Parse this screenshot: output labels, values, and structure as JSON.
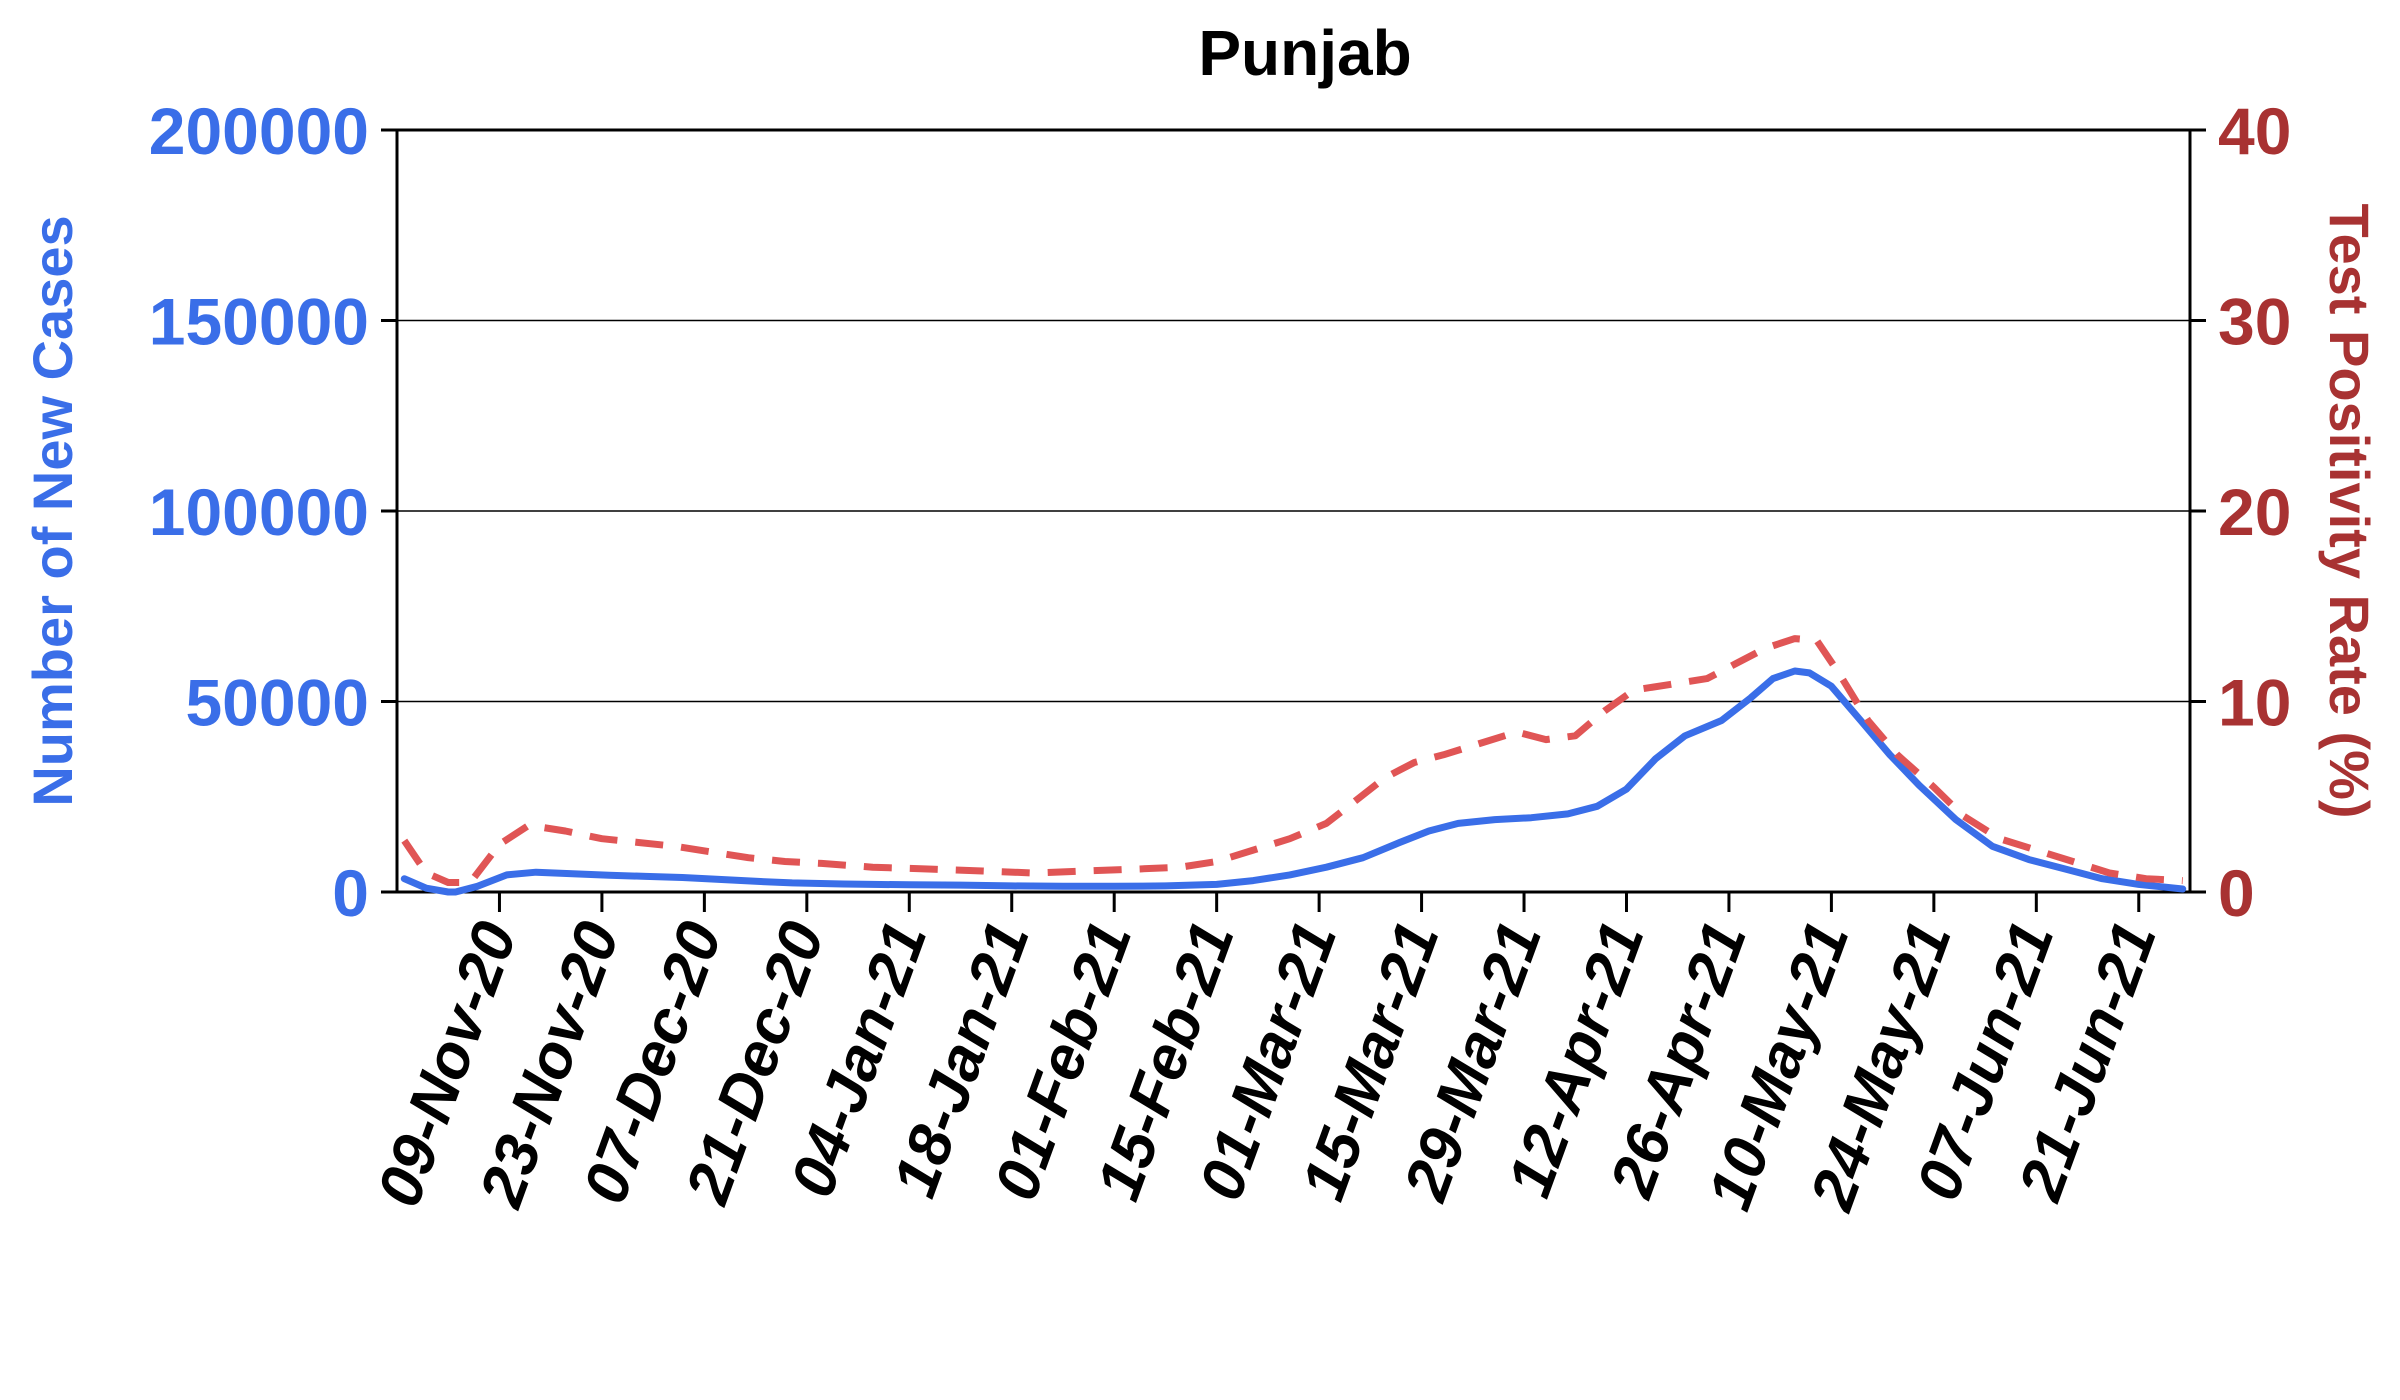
{
  "chart_data": {
    "type": "line",
    "title": "Punjab",
    "ylabel_left": "Number of New Cases",
    "ylabel_right": "Test Positivity Rate (%)",
    "ylim_left": [
      0,
      200000
    ],
    "ylim_right": [
      0,
      40
    ],
    "yticks_left": [
      "0",
      "50000",
      "100000",
      "150000",
      "200000"
    ],
    "yticks_right": [
      "0",
      "10",
      "20",
      "30",
      "40"
    ],
    "xlim": [
      "2020-10-26",
      "2021-06-28"
    ],
    "xticks": [
      {
        "date": "2020-11-09",
        "label": "09-Nov-20"
      },
      {
        "date": "2020-11-23",
        "label": "23-Nov-20"
      },
      {
        "date": "2020-12-07",
        "label": "07-Dec-20"
      },
      {
        "date": "2020-12-21",
        "label": "21-Dec-20"
      },
      {
        "date": "2021-01-04",
        "label": "04-Jan-21"
      },
      {
        "date": "2021-01-18",
        "label": "18-Jan-21"
      },
      {
        "date": "2021-02-01",
        "label": "01-Feb-21"
      },
      {
        "date": "2021-02-15",
        "label": "15-Feb-21"
      },
      {
        "date": "2021-03-01",
        "label": "01-Mar-21"
      },
      {
        "date": "2021-03-15",
        "label": "15-Mar-21"
      },
      {
        "date": "2021-03-29",
        "label": "29-Mar-21"
      },
      {
        "date": "2021-04-12",
        "label": "12-Apr-21"
      },
      {
        "date": "2021-04-26",
        "label": "26-Apr-21"
      },
      {
        "date": "2021-05-10",
        "label": "10-May-21"
      },
      {
        "date": "2021-05-24",
        "label": "24-May-21"
      },
      {
        "date": "2021-06-07",
        "label": "07-Jun-21"
      },
      {
        "date": "2021-06-21",
        "label": "21-Jun-21"
      }
    ],
    "grid": "horizontal",
    "colors": {
      "cases": "#3a6ee8",
      "tpr": "#e05555",
      "left_axis": "#3a6ee8",
      "right_axis": "#a83232"
    },
    "series": [
      {
        "axis": "left",
        "style": "solid",
        "points": [
          [
            "2020-10-27",
            3500
          ],
          [
            "2020-10-30",
            1000
          ],
          [
            "2020-11-02",
            0
          ],
          [
            "2020-11-03",
            0
          ],
          [
            "2020-11-06",
            1500
          ],
          [
            "2020-11-10",
            4500
          ],
          [
            "2020-11-14",
            5200
          ],
          [
            "2020-11-19",
            4800
          ],
          [
            "2020-11-24",
            4400
          ],
          [
            "2020-11-29",
            4100
          ],
          [
            "2020-12-04",
            3800
          ],
          [
            "2020-12-09",
            3300
          ],
          [
            "2020-12-14",
            2800
          ],
          [
            "2020-12-19",
            2400
          ],
          [
            "2020-12-26",
            2100
          ],
          [
            "2021-01-04",
            1900
          ],
          [
            "2021-01-11",
            1800
          ],
          [
            "2021-01-18",
            1600
          ],
          [
            "2021-01-25",
            1500
          ],
          [
            "2021-02-01",
            1500
          ],
          [
            "2021-02-08",
            1600
          ],
          [
            "2021-02-15",
            2000
          ],
          [
            "2021-02-20",
            3000
          ],
          [
            "2021-02-25",
            4500
          ],
          [
            "2021-03-02",
            6500
          ],
          [
            "2021-03-07",
            9000
          ],
          [
            "2021-03-12",
            13000
          ],
          [
            "2021-03-16",
            16000
          ],
          [
            "2021-03-20",
            18000
          ],
          [
            "2021-03-25",
            19000
          ],
          [
            "2021-03-30",
            19500
          ],
          [
            "2021-04-04",
            20500
          ],
          [
            "2021-04-08",
            22500
          ],
          [
            "2021-04-12",
            27000
          ],
          [
            "2021-04-16",
            35000
          ],
          [
            "2021-04-20",
            41000
          ],
          [
            "2021-04-25",
            45000
          ],
          [
            "2021-04-29",
            51000
          ],
          [
            "2021-05-02",
            56000
          ],
          [
            "2021-05-05",
            58000
          ],
          [
            "2021-05-07",
            57500
          ],
          [
            "2021-05-10",
            54000
          ],
          [
            "2021-05-14",
            45000
          ],
          [
            "2021-05-18",
            36000
          ],
          [
            "2021-05-22",
            28000
          ],
          [
            "2021-05-27",
            19000
          ],
          [
            "2021-06-01",
            12000
          ],
          [
            "2021-06-06",
            8500
          ],
          [
            "2021-06-11",
            6000
          ],
          [
            "2021-06-16",
            3500
          ],
          [
            "2021-06-21",
            2000
          ],
          [
            "2021-06-27",
            800
          ]
        ]
      },
      {
        "axis": "right",
        "style": "dashed",
        "points": [
          [
            "2020-10-27",
            2.7
          ],
          [
            "2020-10-30",
            1.0
          ],
          [
            "2020-11-02",
            0.5
          ],
          [
            "2020-11-05",
            0.5
          ],
          [
            "2020-11-09",
            2.5
          ],
          [
            "2020-11-13",
            3.5
          ],
          [
            "2020-11-18",
            3.2
          ],
          [
            "2020-11-23",
            2.8
          ],
          [
            "2020-11-28",
            2.6
          ],
          [
            "2020-12-03",
            2.4
          ],
          [
            "2020-12-08",
            2.1
          ],
          [
            "2020-12-13",
            1.8
          ],
          [
            "2020-12-18",
            1.6
          ],
          [
            "2020-12-23",
            1.5
          ],
          [
            "2020-12-30",
            1.3
          ],
          [
            "2021-01-07",
            1.2
          ],
          [
            "2021-01-14",
            1.1
          ],
          [
            "2021-01-21",
            1.0
          ],
          [
            "2021-01-28",
            1.1
          ],
          [
            "2021-02-04",
            1.2
          ],
          [
            "2021-02-10",
            1.3
          ],
          [
            "2021-02-15",
            1.6
          ],
          [
            "2021-02-20",
            2.2
          ],
          [
            "2021-02-25",
            2.8
          ],
          [
            "2021-03-02",
            3.6
          ],
          [
            "2021-03-06",
            4.8
          ],
          [
            "2021-03-10",
            6.0
          ],
          [
            "2021-03-14",
            6.8
          ],
          [
            "2021-03-18",
            7.2
          ],
          [
            "2021-03-23",
            7.8
          ],
          [
            "2021-03-28",
            8.4
          ],
          [
            "2021-04-01",
            8.0
          ],
          [
            "2021-04-05",
            8.2
          ],
          [
            "2021-04-09",
            9.5
          ],
          [
            "2021-04-13",
            10.6
          ],
          [
            "2021-04-18",
            10.9
          ],
          [
            "2021-04-23",
            11.2
          ],
          [
            "2021-04-27",
            12.0
          ],
          [
            "2021-05-01",
            12.8
          ],
          [
            "2021-05-05",
            13.3
          ],
          [
            "2021-05-08",
            13.2
          ],
          [
            "2021-05-11",
            11.5
          ],
          [
            "2021-05-15",
            9.0
          ],
          [
            "2021-05-19",
            7.2
          ],
          [
            "2021-05-24",
            5.5
          ],
          [
            "2021-05-28",
            4.0
          ],
          [
            "2021-06-02",
            2.8
          ],
          [
            "2021-06-07",
            2.2
          ],
          [
            "2021-06-12",
            1.6
          ],
          [
            "2021-06-17",
            1.0
          ],
          [
            "2021-06-22",
            0.7
          ],
          [
            "2021-06-27",
            0.6
          ]
        ]
      }
    ]
  }
}
